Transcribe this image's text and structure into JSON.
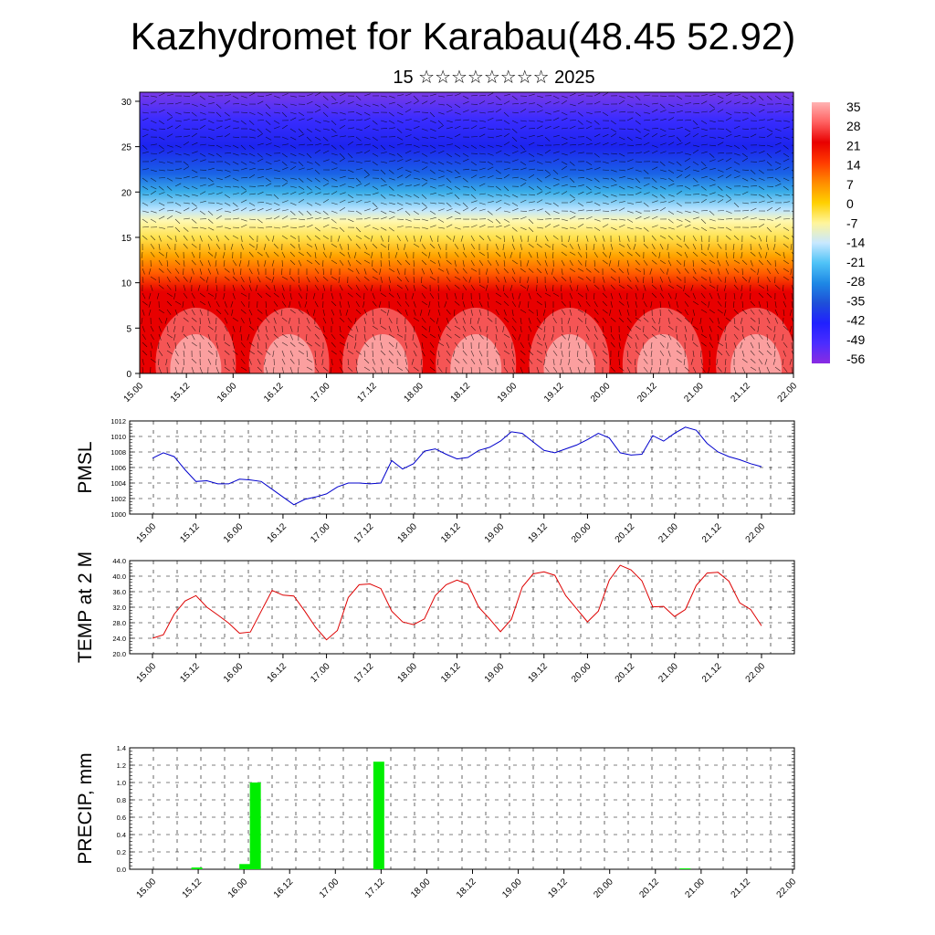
{
  "header": {
    "title": "Kazhydromet for Karabau(48.45 52.92)",
    "subtitle": "15 ☆☆☆☆☆☆☆☆ 2025"
  },
  "chart_data": [
    {
      "type": "heatmap",
      "title": "Kazhydromet for Karabau(48.45 52.92)",
      "subtitle": "15 ☆☆☆☆☆☆☆☆ 2025",
      "x_ticks": [
        "15.00",
        "15.12",
        "16.00",
        "16.12",
        "17.00",
        "17.12",
        "18.00",
        "18.12",
        "19.00",
        "19.12",
        "20.00",
        "20.12",
        "21.00",
        "21.12",
        "22.00"
      ],
      "y_ticks": [
        0,
        5,
        10,
        15,
        20,
        25,
        30
      ],
      "ylim": [
        0,
        31
      ],
      "colorbar_labels": [
        "35",
        "28",
        "21",
        "14",
        "7",
        "0",
        "-7",
        "-14",
        "-21",
        "-28",
        "-35",
        "-42",
        "-49",
        "-56"
      ],
      "colorbar_colors": [
        "#ffb3b3",
        "#ff6060",
        "#e80000",
        "#ff3a00",
        "#ff8c00",
        "#ffd000",
        "#fff59a",
        "#c8e8ff",
        "#4fc3f7",
        "#1e88e5",
        "#1e4fd8",
        "#2020ff",
        "#4b2cff",
        "#8a2be2"
      ],
      "bands": [
        {
          "z": 0,
          "color": "#e80000"
        },
        {
          "z": 9,
          "color": "#e80000"
        },
        {
          "z": 11,
          "color": "#ff5a00"
        },
        {
          "z": 13,
          "color": "#ffa500"
        },
        {
          "z": 15,
          "color": "#ffe14d"
        },
        {
          "z": 16.8,
          "color": "#fff8b0"
        },
        {
          "z": 18,
          "color": "#bfe6ff"
        },
        {
          "z": 20,
          "color": "#3aaee8"
        },
        {
          "z": 22,
          "color": "#1a63e6"
        },
        {
          "z": 25,
          "color": "#1c24ee"
        },
        {
          "z": 28,
          "color": "#3a2cff"
        },
        {
          "z": 31,
          "color": "#7a3ae6"
        }
      ],
      "warm_cores": [
        0.6,
        1.6,
        2.6,
        3.6,
        4.6,
        5.6,
        6.6
      ]
    },
    {
      "type": "line",
      "ylabel": "PMSL",
      "ylim": [
        1000,
        1012
      ],
      "y_ticks": [
        1000,
        1002,
        1004,
        1006,
        1008,
        1010,
        1012
      ],
      "x_ticks": [
        "15.00",
        "15.12",
        "16.00",
        "16.12",
        "17.00",
        "17.12",
        "18.00",
        "18.12",
        "19.00",
        "19.12",
        "20.00",
        "20.12",
        "21.00",
        "21.12",
        "22.00"
      ],
      "series": [
        {
          "color": "#0000cc",
          "values": [
            1007.2,
            1007.9,
            1007.4,
            1005.7,
            1004.2,
            1004.3,
            1003.9,
            1003.9,
            1004.5,
            1004.4,
            1004.2,
            1003.2,
            1002.2,
            1001.2,
            1001.9,
            1002.2,
            1002.6,
            1003.5,
            1004.0,
            1004.0,
            1003.9,
            1004.0,
            1006.9,
            1005.8,
            1006.5,
            1008.1,
            1008.4,
            1007.7,
            1007.1,
            1007.3,
            1008.2,
            1008.6,
            1009.4,
            1010.6,
            1010.4,
            1009.3,
            1008.2,
            1007.9,
            1008.4,
            1008.9,
            1009.6,
            1010.4,
            1009.8,
            1007.9,
            1007.6,
            1007.7,
            1010.1,
            1009.4,
            1010.4,
            1011.2,
            1010.8,
            1009.1,
            1008.0,
            1007.4,
            1007.0,
            1006.5,
            1006.1
          ]
        }
      ]
    },
    {
      "type": "line",
      "ylabel": "TEMP at 2 M",
      "ylim": [
        20,
        44
      ],
      "y_ticks": [
        "20.0",
        "24.0",
        "28.0",
        "32.0",
        "36.0",
        "40.0",
        "44.0"
      ],
      "x_ticks": [
        "15.00",
        "15.12",
        "16.00",
        "16.12",
        "17.00",
        "17.12",
        "18.00",
        "18.12",
        "19.00",
        "19.12",
        "20.00",
        "20.12",
        "21.00",
        "21.12",
        "22.00"
      ],
      "series": [
        {
          "color": "#dd0000",
          "values": [
            24.0,
            24.9,
            30.2,
            33.6,
            35.0,
            32.0,
            30.0,
            27.9,
            25.3,
            25.6,
            31.0,
            36.3,
            35.1,
            34.9,
            31.0,
            26.8,
            23.6,
            26.0,
            34.5,
            37.8,
            38.0,
            36.8,
            31.0,
            28.2,
            27.5,
            29.0,
            35.0,
            37.8,
            39.0,
            37.9,
            32.0,
            29.0,
            25.7,
            28.9,
            37.2,
            40.6,
            41.1,
            40.2,
            35.0,
            31.6,
            28.2,
            31.0,
            39.0,
            42.8,
            41.6,
            38.8,
            32.1,
            32.2,
            29.6,
            31.4,
            37.6,
            40.8,
            41.0,
            38.7,
            33.1,
            31.4,
            27.2
          ]
        }
      ]
    },
    {
      "type": "bar",
      "ylabel": "PRECIP, mm",
      "ylim": [
        0,
        1.4
      ],
      "y_ticks": [
        "0.0",
        "0.2",
        "0.4",
        "0.6",
        "0.8",
        "1.0",
        "1.2",
        "1.4"
      ],
      "x_ticks": [
        "15.00",
        "15.12",
        "16.00",
        "16.12",
        "17.00",
        "17.12",
        "18.00",
        "18.12",
        "19.00",
        "19.12",
        "20.00",
        "20.12",
        "21.00",
        "21.12",
        "22.00"
      ],
      "bars": [
        {
          "x": 0.97,
          "value": 0.02
        },
        {
          "x": 2.02,
          "value": 0.06
        },
        {
          "x": 2.25,
          "value": 1.0
        },
        {
          "x": 4.95,
          "value": 1.24
        },
        {
          "x": 11.65,
          "value": 0.01
        }
      ],
      "bar_color": "#00ee00"
    }
  ]
}
